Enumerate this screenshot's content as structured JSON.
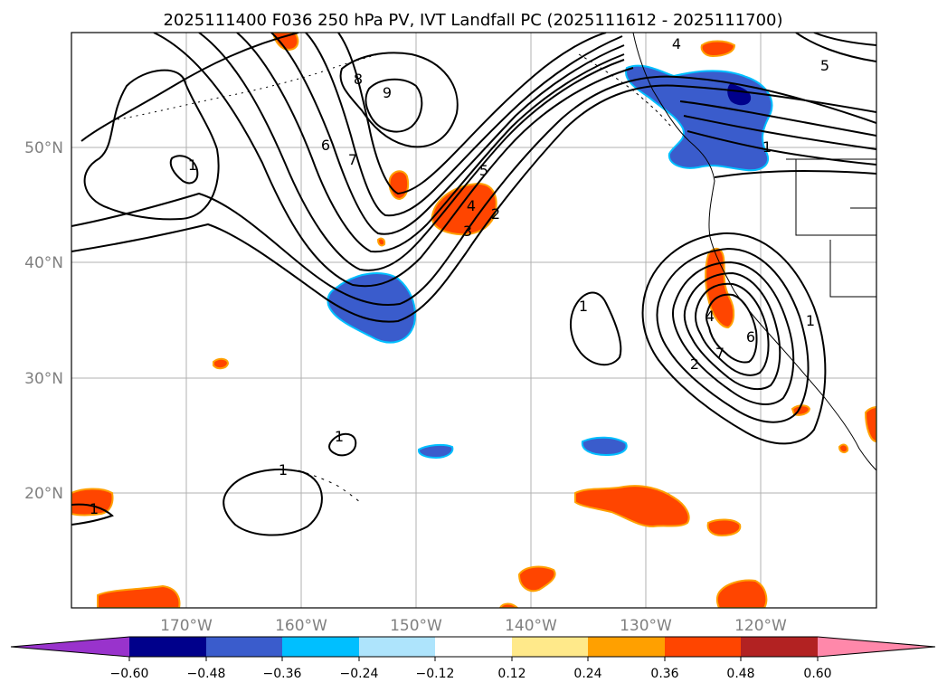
{
  "title": "2025111400 F036 250 hPa PV, IVT Landfall PC (2025111612 - 2025111700)",
  "lat_labels": [
    "50°N",
    "40°N",
    "30°N",
    "20°N"
  ],
  "lon_labels": [
    "170°W",
    "160°W",
    "150°W",
    "140°W",
    "130°W",
    "120°W"
  ],
  "map_extent": {
    "lon": [
      -180,
      -110
    ],
    "lat": [
      10,
      60
    ]
  },
  "colorbar": {
    "ticks": [
      "−0.60",
      "−0.48",
      "−0.36",
      "−0.24",
      "−0.12",
      "0.12",
      "0.24",
      "0.36",
      "0.48",
      "0.60"
    ],
    "colors": [
      "#9933cc",
      "#00008b",
      "#3a5ccc",
      "#00bfff",
      "#aee4fc",
      "#ffffff",
      "#ffe98a",
      "#ffa000",
      "#ff4500",
      "#b22222",
      "#ff88aa"
    ]
  },
  "contour_labels": [
    "1",
    "1",
    "1",
    "1",
    "1",
    "1",
    "2",
    "3",
    "4",
    "5",
    "6",
    "7",
    "8",
    "9",
    "2",
    "4",
    "6",
    "7",
    "1",
    "4",
    "5"
  ]
}
